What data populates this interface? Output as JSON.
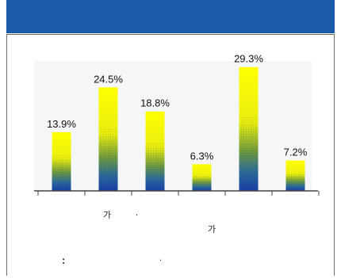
{
  "header": {
    "color": "#1a5ba8"
  },
  "chart_data": {
    "type": "bar",
    "values": [
      13.9,
      24.5,
      18.8,
      6.3,
      29.3,
      7.2
    ],
    "data_labels": [
      "13.9%",
      "24.5%",
      "18.8%",
      "6.3%",
      "29.3%",
      "7.2%"
    ],
    "ylim": [
      0,
      30
    ],
    "grid": false,
    "colors": {
      "top": "#ffff00",
      "middle": "#4a8f4a",
      "bottom": "#1840a8"
    }
  },
  "notes": {
    "line1_char": "가",
    "line1_dot": ".",
    "line2_char": "가",
    "line3_colon": ":",
    "line3_dot": "."
  }
}
